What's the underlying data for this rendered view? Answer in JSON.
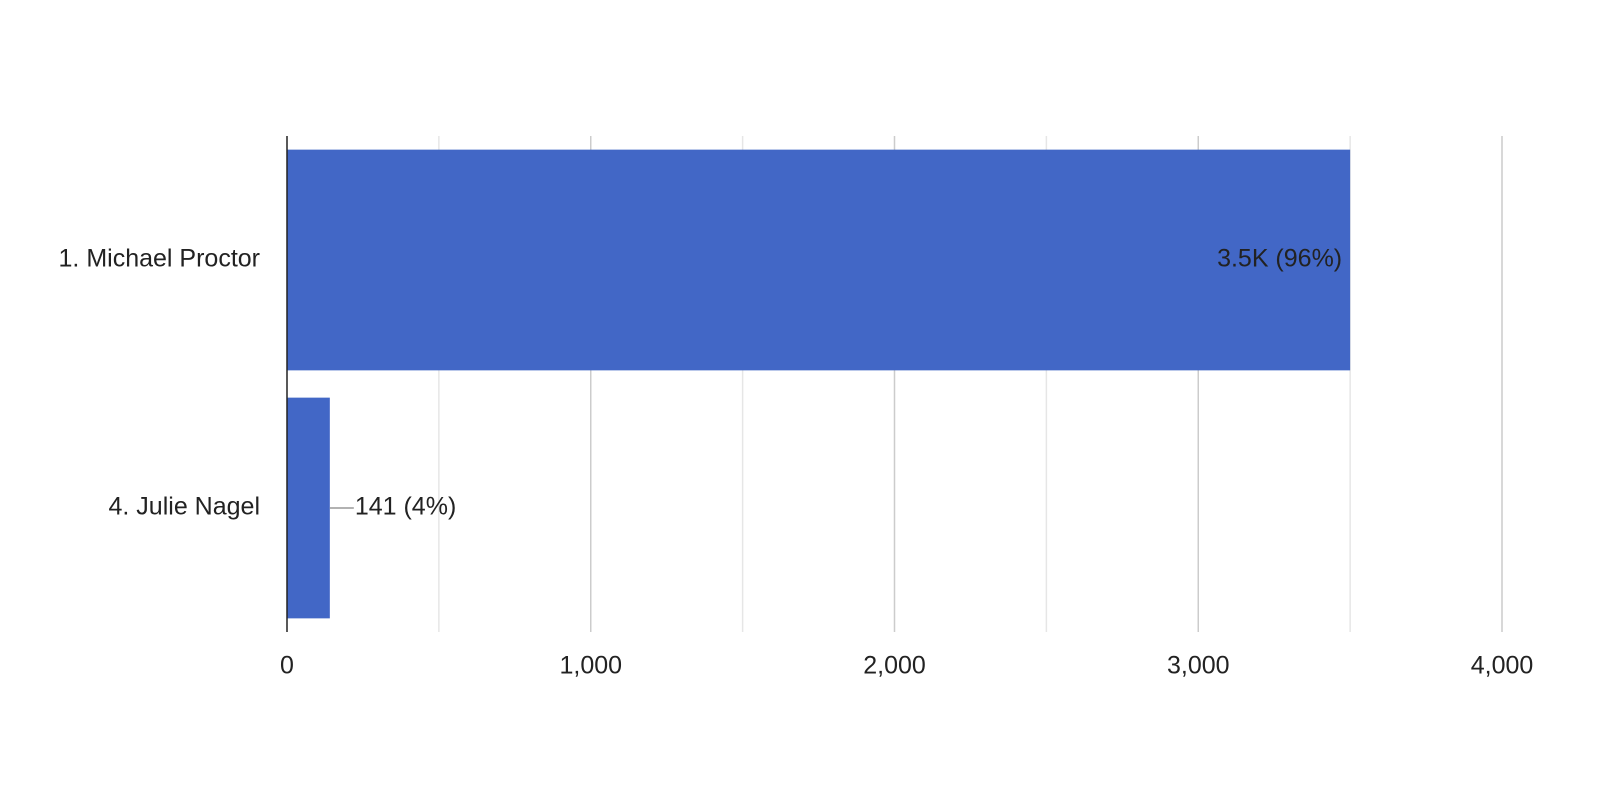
{
  "chart_data": {
    "type": "bar",
    "orientation": "horizontal",
    "categories": [
      "1. Michael Proctor",
      "4. Julie Nagel"
    ],
    "values": [
      3500,
      141
    ],
    "value_labels": [
      "3.5K (96%)",
      "141 (4%)"
    ],
    "color": "#4267c6",
    "xlim": [
      0,
      4000
    ],
    "xticks": [
      0,
      {
        "value": 1000,
        "label": "1,000"
      },
      {
        "value": 2000,
        "label": "2,000"
      },
      {
        "value": 3000,
        "label": "3,000"
      },
      {
        "value": 4000,
        "label": "4,000"
      }
    ],
    "grid": true,
    "minor_grid": true
  }
}
